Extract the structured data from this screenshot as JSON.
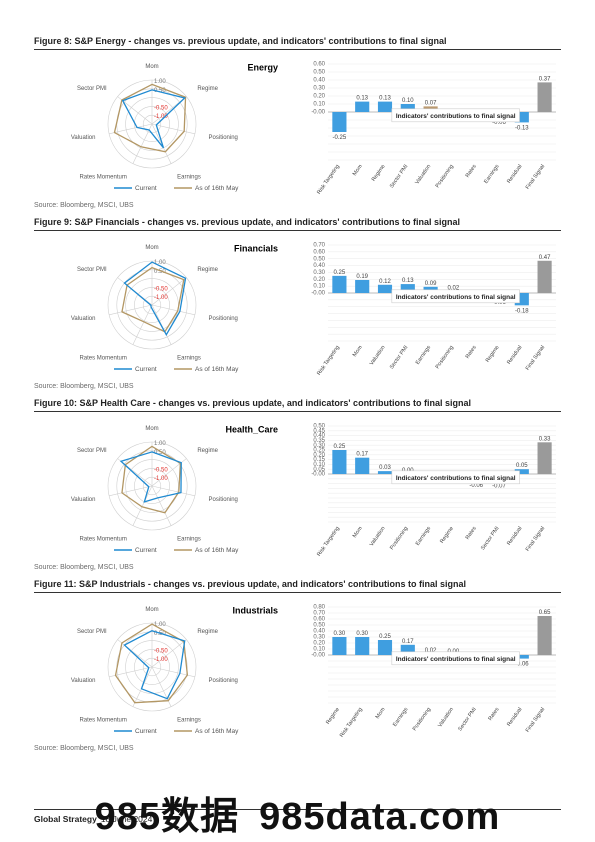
{
  "radarAxes": [
    "Mom",
    "Regime",
    "Positioning",
    "Earnings",
    "Rates Momentum",
    "Valuation",
    "Sector PMI"
  ],
  "radarRings": [
    {
      "v": "-1.00",
      "neg": true
    },
    {
      "v": "-0.50",
      "neg": true
    },
    {
      "v": "",
      "neg": false
    },
    {
      "v": "0.50",
      "neg": false
    },
    {
      "v": "1.00",
      "neg": false
    }
  ],
  "radarLegend": {
    "current": "Current",
    "prev": "As of 16th May"
  },
  "source": "Source: Bloomberg, MSCI, UBS",
  "barNote": "Indicators' contributions to final signal",
  "figures": [
    {
      "title": "Figure 8: S&P Energy - changes vs. previous update, and indicators' contributions to final signal",
      "sector": "Energy",
      "radarCurrent": [
        0.55,
        0.9,
        -0.8,
        0.2,
        -0.7,
        -0.3,
        0.7
      ],
      "radarPrev": [
        0.8,
        0.95,
        0.5,
        0.4,
        0.15,
        0.75,
        0.75
      ],
      "bar": {
        "yMax": 0.6,
        "yStep": 0.1,
        "cats": [
          "Risk Targeting",
          "Mom",
          "Regime",
          "Sector PMI",
          "Valuation",
          "Positioning",
          "Rates",
          "Earnings",
          "Residual",
          "Final Signal"
        ],
        "vals": [
          -0.25,
          0.13,
          0.13,
          0.1,
          0.07,
          -0.02,
          -0.03,
          -0.06,
          -0.13,
          0.37
        ],
        "colors": [
          "blue",
          "blue",
          "blue",
          "blue",
          "tan",
          "tan",
          "tan",
          "tan",
          "blue",
          "grey"
        ],
        "finalIdx": 9
      }
    },
    {
      "title": "Figure 9: S&P Financials - changes vs. previous update, and indicators' contributions to final signal",
      "sector": "Financials",
      "radarCurrent": [
        0.95,
        0.95,
        0.3,
        0.5,
        -0.9,
        -0.95,
        0.6
      ],
      "radarPrev": [
        0.7,
        0.85,
        0.2,
        0.35,
        -0.15,
        0.4,
        0.45
      ],
      "bar": {
        "yMax": 0.7,
        "yStep": 0.1,
        "cats": [
          "Risk Targeting",
          "Mom",
          "Valuation",
          "Sector PMI",
          "Earnings",
          "Positioning",
          "Rates",
          "Regime",
          "Residual",
          "Final Signal"
        ],
        "vals": [
          0.25,
          0.19,
          0.12,
          0.13,
          0.09,
          0.02,
          -0.01,
          -0.06,
          -0.18,
          0.47
        ],
        "colors": [
          "blue",
          "blue",
          "blue",
          "blue",
          "blue",
          "tan",
          "tan",
          "tan",
          "blue",
          "grey"
        ],
        "finalIdx": 9
      }
    },
    {
      "title": "Figure 10: S&P Health Care - changes vs. previous update, and indicators' contributions to final signal",
      "sector": "Health_Care",
      "radarCurrent": [
        0.55,
        0.7,
        0.35,
        -0.4,
        -0.2,
        -0.85,
        0.8
      ],
      "radarPrev": [
        0.8,
        0.65,
        0.25,
        0.35,
        0.05,
        0.4,
        0.55
      ],
      "bar": {
        "yMax": 0.5,
        "yStep": 0.05,
        "cats": [
          "Risk Targeting",
          "Mom",
          "Valuation",
          "Positioning",
          "Earnings",
          "Regime",
          "Rates",
          "Sector PMI",
          "Residual",
          "Final Signal"
        ],
        "vals": [
          0.25,
          0.17,
          0.03,
          -0.0,
          -0.02,
          -0.03,
          -0.06,
          -0.07,
          0.05,
          0.33
        ],
        "colors": [
          "blue",
          "blue",
          "blue",
          "tan",
          "tan",
          "tan",
          "tan",
          "tan",
          "blue",
          "grey"
        ],
        "finalIdx": 9
      }
    },
    {
      "title": "Figure 11: S&P Industrials - changes vs. previous update, and indicators' contributions to final signal",
      "sector": "Industrials",
      "radarCurrent": [
        0.65,
        0.9,
        0.3,
        0.6,
        0.1,
        -0.85,
        0.6
      ],
      "radarPrev": [
        0.95,
        0.85,
        0.65,
        0.7,
        0.8,
        0.7,
        0.75
      ],
      "bar": {
        "yMax": 0.8,
        "yStep": 0.1,
        "cats": [
          "Regime",
          "Risk Targeting",
          "Mom",
          "Earnings",
          "Positioning",
          "Valuation",
          "Sector PMI",
          "Rates",
          "Residual",
          "Final Signal"
        ],
        "vals": [
          0.3,
          0.3,
          0.25,
          0.17,
          0.02,
          0.0,
          -0.01,
          -0.02,
          -0.06,
          0.65
        ],
        "colors": [
          "blue",
          "blue",
          "blue",
          "blue",
          "blue",
          "tan",
          "tan",
          "tan",
          "blue",
          "grey"
        ],
        "finalIdx": 9
      }
    }
  ],
  "footer": {
    "left": "Global Strategy",
    "date": "18 June 2024"
  },
  "watermark": {
    "a": "985数据",
    "b": "985data.com"
  }
}
